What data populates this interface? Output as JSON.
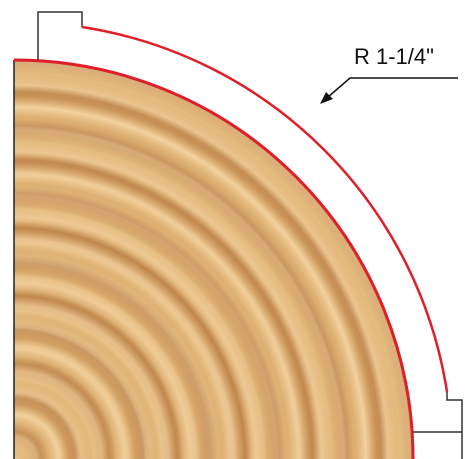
{
  "label": "R 1-1/4\""
}
